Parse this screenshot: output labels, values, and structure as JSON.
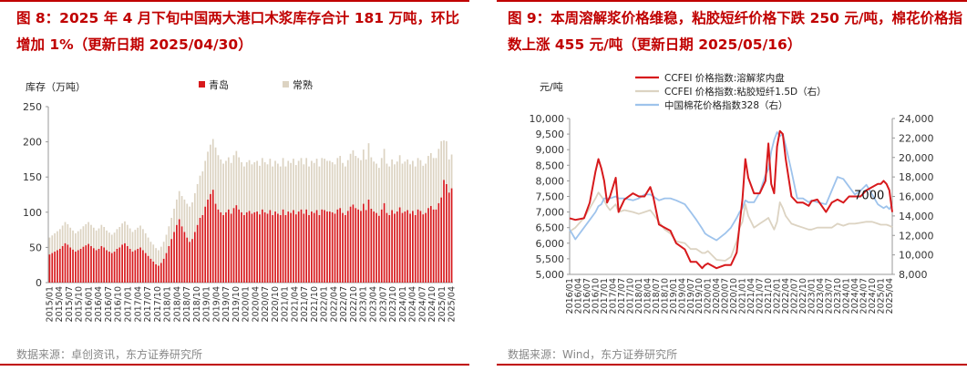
{
  "left": {
    "title": "图 8：2025 年 4 月下旬中国两大港口木浆库存合计 181 万吨，环比增加 1%（更新日期 2025/04/30）",
    "source": "数据来源：卓创资讯，东方证券研究所"
  },
  "right": {
    "title": "图 9：本周溶解浆价格维稳，粘胶短纤价格下跌 250 元/吨，棉花价格指数上涨 455 元/吨（更新日期 2025/05/16）",
    "source": "数据来源：Wind，东方证券研究所"
  },
  "colors": {
    "red": "#d7191c",
    "beige": "#dcd3c2",
    "blue": "#9ec3ec",
    "title": "#c00000"
  },
  "chart_data": [
    {
      "type": "bar",
      "stacked": true,
      "ylabel": "库存（万吨）",
      "ylim": [
        0,
        250
      ],
      "yticks": [
        0,
        50,
        100,
        150,
        200,
        250
      ],
      "grid": false,
      "legend_position": "top",
      "xtick_labels": [
        "2015/01",
        "2015/04",
        "2015/07",
        "2015/10",
        "2016/01",
        "2016/04",
        "2016/07",
        "2016/10",
        "2017/01",
        "2017/04",
        "2017/07",
        "2017/10",
        "2018/01",
        "2018/04",
        "2018/07",
        "2018/10",
        "2019/01",
        "2019/04",
        "2019/07",
        "2019/10",
        "2020/01",
        "2020/04",
        "2020/07",
        "2020/10",
        "2021/01",
        "2021/04",
        "2021/07",
        "2021/10",
        "2022/01",
        "2022/04",
        "2022/07",
        "2022/10",
        "2023/01",
        "2023/04",
        "2023/07",
        "2023/10",
        "2024/01",
        "2024/04",
        "2024/07",
        "2024/10",
        "2025/01",
        "2025/04"
      ],
      "series": [
        {
          "name": "青岛",
          "color": "#d7191c",
          "values": [
            40,
            42,
            44,
            46,
            48,
            52,
            56,
            54,
            50,
            47,
            44,
            46,
            48,
            51,
            53,
            55,
            52,
            49,
            46,
            48,
            52,
            50,
            46,
            44,
            42,
            44,
            48,
            50,
            54,
            56,
            52,
            48,
            44,
            46,
            48,
            50,
            46,
            42,
            38,
            34,
            30,
            26,
            24,
            28,
            34,
            42,
            52,
            62,
            72,
            82,
            90,
            80,
            72,
            64,
            58,
            62,
            72,
            82,
            92,
            96,
            108,
            118,
            126,
            132,
            112,
            104,
            100,
            96,
            100,
            104,
            98,
            106,
            110,
            104,
            100,
            96,
            100,
            102,
            98,
            100,
            101,
            97,
            104,
            100,
            98,
            103,
            96,
            101,
            98,
            96,
            104,
            96,
            101,
            99,
            103,
            97,
            101,
            104,
            98,
            104,
            96,
            101,
            99,
            103,
            96,
            104,
            103,
            101,
            101,
            100,
            98,
            104,
            106,
            99,
            96,
            102,
            108,
            111,
            106,
            104,
            102,
            112,
            103,
            118,
            105,
            101,
            99,
            95,
            104,
            113,
            99,
            96,
            103,
            98,
            101,
            107,
            99,
            101,
            103,
            98,
            102,
            96,
            104,
            102,
            97,
            99,
            106,
            109,
            104,
            104,
            113,
            121,
            146,
            140,
            128,
            134
          ]
        },
        {
          "name": "常熟",
          "color": "#dcd3c2",
          "values": [
            24,
            25,
            26,
            27,
            28,
            29,
            30,
            29,
            28,
            27,
            26,
            27,
            28,
            29,
            30,
            31,
            30,
            29,
            28,
            29,
            30,
            29,
            28,
            27,
            26,
            27,
            28,
            29,
            30,
            31,
            30,
            29,
            28,
            29,
            30,
            31,
            30,
            28,
            26,
            24,
            24,
            23,
            22,
            23,
            24,
            26,
            28,
            30,
            33,
            36,
            40,
            43,
            46,
            48,
            50,
            52,
            55,
            58,
            60,
            62,
            65,
            68,
            70,
            72,
            80,
            77,
            75,
            73,
            73,
            74,
            72,
            75,
            77,
            74,
            71,
            69,
            71,
            72,
            70,
            71,
            72,
            69,
            73,
            71,
            70,
            73,
            69,
            72,
            71,
            69,
            73,
            69,
            72,
            71,
            73,
            70,
            72,
            73,
            70,
            73,
            69,
            72,
            71,
            73,
            69,
            73,
            73,
            72,
            72,
            71,
            70,
            73,
            74,
            71,
            69,
            72,
            75,
            77,
            74,
            73,
            72,
            77,
            72,
            80,
            73,
            71,
            70,
            68,
            73,
            77,
            70,
            69,
            72,
            70,
            71,
            74,
            70,
            71,
            72,
            70,
            71,
            69,
            73,
            72,
            69,
            70,
            74,
            75,
            73,
            73,
            77,
            80,
            56,
            61,
            47,
            48
          ]
        }
      ]
    },
    {
      "type": "line",
      "ylabel": "元/吨",
      "ylim": [
        5000,
        10000
      ],
      "yticks": [
        5000,
        5500,
        6000,
        6500,
        7000,
        7500,
        8000,
        8500,
        9000,
        9500,
        10000
      ],
      "y2lim": [
        8000,
        24000
      ],
      "y2ticks": [
        8000,
        10000,
        12000,
        14000,
        16000,
        18000,
        20000,
        22000,
        24000
      ],
      "grid": false,
      "legend_position": "top",
      "annotation": "7000",
      "annotation_value": 7000,
      "xtick_labels": [
        "2016/01",
        "2016/04",
        "2016/07",
        "2016/10",
        "2017/01",
        "2017/04",
        "2017/07",
        "2017/10",
        "2018/01",
        "2018/04",
        "2018/07",
        "2018/10",
        "2019/01",
        "2019/04",
        "2019/07",
        "2019/10",
        "2020/01",
        "2020/04",
        "2020/07",
        "2020/10",
        "2021/01",
        "2021/04",
        "2021/07",
        "2021/10",
        "2022/01",
        "2022/04",
        "2022/07",
        "2022/10",
        "2023/01",
        "2023/04",
        "2023/07",
        "2023/10",
        "2024/01",
        "2024/04",
        "2024/07",
        "2024/10",
        "2025/01",
        "2025/04"
      ],
      "x": [
        "2016/01",
        "2016/03",
        "2016/06",
        "2016/08",
        "2016/10",
        "2016/11",
        "2016/12",
        "2017/01",
        "2017/02",
        "2017/03",
        "2017/05",
        "2017/06",
        "2017/08",
        "2017/11",
        "2018/01",
        "2018/03",
        "2018/05",
        "2018/06",
        "2018/08",
        "2018/10",
        "2018/12",
        "2019/02",
        "2019/05",
        "2019/07",
        "2019/09",
        "2019/11",
        "2019/12",
        "2020/01",
        "2020/04",
        "2020/07",
        "2020/09",
        "2020/11",
        "2020/12",
        "2021/01",
        "2021/02",
        "2021/03",
        "2021/05",
        "2021/07",
        "2021/09",
        "2021/10",
        "2021/11",
        "2021/12",
        "2022/01",
        "2022/02",
        "2022/03",
        "2022/04",
        "2022/06",
        "2022/08",
        "2022/10",
        "2022/12",
        "2023/01",
        "2023/03",
        "2023/06",
        "2023/08",
        "2023/10",
        "2023/12",
        "2024/02",
        "2024/04",
        "2024/06",
        "2024/08",
        "2024/10",
        "2024/12",
        "2025/01",
        "2025/02",
        "2025/03",
        "2025/04",
        "2025/05"
      ],
      "series": [
        {
          "name": "CCFEI 价格指数:溶解浆内盘",
          "axis": "left",
          "color": "#d7191c",
          "values": [
            6800,
            6750,
            6800,
            7300,
            8300,
            8700,
            8400,
            8000,
            7300,
            7500,
            8100,
            7000,
            7400,
            7600,
            7500,
            7500,
            7800,
            7500,
            6600,
            6500,
            6400,
            6000,
            5800,
            5400,
            5400,
            5200,
            5300,
            5350,
            5200,
            5300,
            5300,
            5700,
            6600,
            7400,
            8700,
            8100,
            7600,
            7600,
            8000,
            9200,
            7900,
            7600,
            9100,
            9600,
            9500,
            8700,
            7500,
            7300,
            7300,
            7200,
            7350,
            7400,
            7000,
            7300,
            7400,
            7300,
            7500,
            7500,
            7500,
            7700,
            7800,
            7900,
            7900,
            8000,
            7900,
            7700,
            7000
          ]
        },
        {
          "name": "CCFEI 价格指数:粘胶短纤1.5D（右）",
          "axis": "right",
          "color": "#dcd3c2",
          "values": [
            12400,
            12800,
            13800,
            14800,
            15800,
            16400,
            16000,
            15600,
            15000,
            14600,
            15200,
            14400,
            14600,
            14400,
            14200,
            14400,
            14600,
            14200,
            13400,
            12600,
            12200,
            11400,
            11200,
            10600,
            10600,
            10200,
            10200,
            10400,
            9500,
            9400,
            9800,
            11400,
            12800,
            13400,
            15200,
            14000,
            12800,
            13200,
            13600,
            13800,
            13200,
            12600,
            13400,
            15400,
            14800,
            14000,
            13200,
            13000,
            12800,
            12600,
            12600,
            12800,
            12800,
            12800,
            13200,
            13000,
            13200,
            13200,
            13300,
            13400,
            13400,
            13200,
            13100,
            13100,
            13100,
            13000,
            12850
          ]
        },
        {
          "name": "中国棉花价格指数328（右）",
          "axis": "right",
          "color": "#9ec3ec",
          "values": [
            12600,
            11600,
            12800,
            13600,
            14400,
            15000,
            15200,
            15800,
            15800,
            15800,
            16000,
            15800,
            15800,
            15600,
            15800,
            16200,
            16200,
            16000,
            15600,
            15800,
            15800,
            15600,
            15200,
            14400,
            13600,
            12700,
            12200,
            12000,
            11500,
            12200,
            12800,
            13800,
            14400,
            14800,
            15600,
            15400,
            15400,
            16400,
            18200,
            18800,
            20600,
            21800,
            22600,
            22200,
            22400,
            21200,
            18600,
            15800,
            15800,
            15400,
            15600,
            15400,
            15200,
            16600,
            18000,
            17800,
            17000,
            16200,
            16600,
            17200,
            16200,
            15200,
            15000,
            14800,
            15000,
            14700,
            15155
          ]
        }
      ]
    }
  ]
}
